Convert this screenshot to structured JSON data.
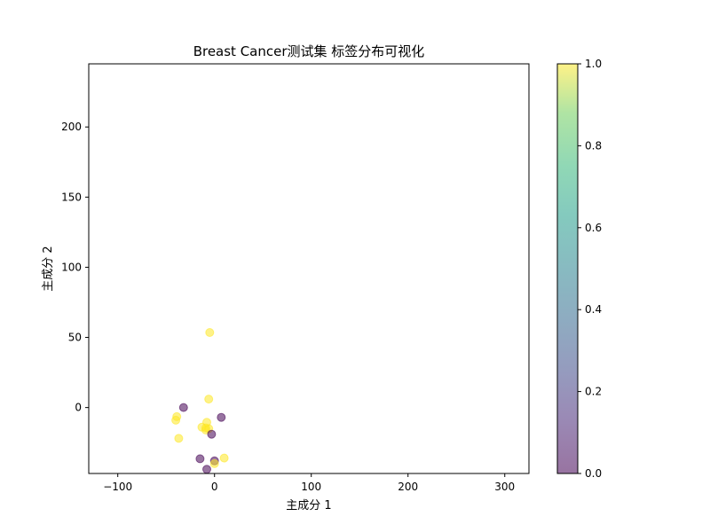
{
  "chart_data": {
    "type": "scatter",
    "title": "Breast Cancer测试集 标签分布可视化",
    "xlabel": "主成分 1",
    "ylabel": "主成分 2",
    "xlim": [
      -130,
      325
    ],
    "ylim": [
      -47,
      245
    ],
    "xticks": [
      -100,
      0,
      100,
      200,
      300
    ],
    "xtick_labels": [
      "−100",
      "0",
      "100",
      "200",
      "300"
    ],
    "yticks": [
      0,
      50,
      100,
      150,
      200
    ],
    "ytick_labels": [
      "0",
      "50",
      "100",
      "150",
      "200"
    ],
    "grid": false,
    "legend": "none",
    "colormap": {
      "name": "viridis",
      "alpha": 0.55,
      "range": [
        0,
        1
      ],
      "ticks": [
        0.0,
        0.2,
        0.4,
        0.6,
        0.8,
        1.0
      ],
      "tick_labels": [
        "0.0",
        "0.2",
        "0.4",
        "0.6",
        "0.8",
        "1.0"
      ],
      "low_color": "#440154",
      "high_color": "#fde725"
    },
    "points": [
      {
        "x": -5,
        "y": 53.5,
        "label": 1
      },
      {
        "x": -6,
        "y": 6,
        "label": 1
      },
      {
        "x": -32,
        "y": 0,
        "label": 0
      },
      {
        "x": -39,
        "y": -6.5,
        "label": 1
      },
      {
        "x": -40,
        "y": -9,
        "label": 1
      },
      {
        "x": 7,
        "y": -7,
        "label": 0
      },
      {
        "x": -8,
        "y": -10.5,
        "label": 1
      },
      {
        "x": -13,
        "y": -14,
        "label": 1
      },
      {
        "x": -9,
        "y": -14.5,
        "label": 1
      },
      {
        "x": -6,
        "y": -15,
        "label": 1
      },
      {
        "x": -9,
        "y": -16,
        "label": 1
      },
      {
        "x": -3,
        "y": -19,
        "label": 0
      },
      {
        "x": -37,
        "y": -22,
        "label": 1
      },
      {
        "x": -15,
        "y": -36.5,
        "label": 0
      },
      {
        "x": 10,
        "y": -36,
        "label": 1
      },
      {
        "x": 0,
        "y": -38,
        "label": 0
      },
      {
        "x": 0,
        "y": -40,
        "label": 1
      },
      {
        "x": -8,
        "y": -44,
        "label": 0
      }
    ]
  }
}
